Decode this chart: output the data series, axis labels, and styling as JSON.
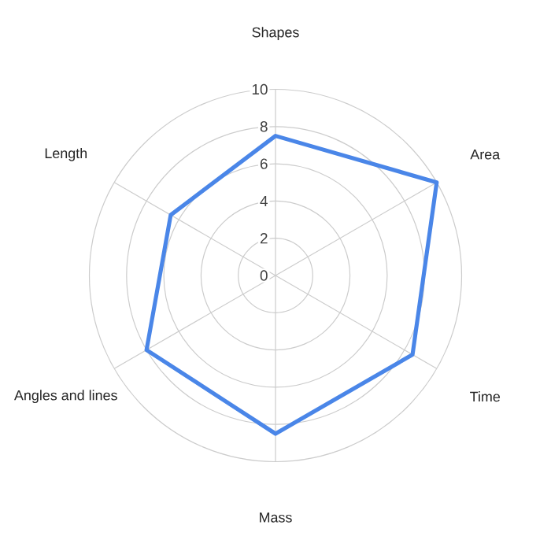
{
  "chart_data": {
    "type": "radar",
    "categories": [
      "Shapes",
      "Area",
      "Time",
      "Mass",
      "Angles and lines",
      "Length"
    ],
    "series": [
      {
        "color": "#4a86e8",
        "values": [
          7.5,
          10,
          8.5,
          8.5,
          8,
          6.5
        ]
      }
    ],
    "ylim": [
      0,
      10
    ],
    "yticks": [
      0,
      2,
      4,
      6,
      8,
      10
    ],
    "grid": true,
    "marker": "none"
  }
}
